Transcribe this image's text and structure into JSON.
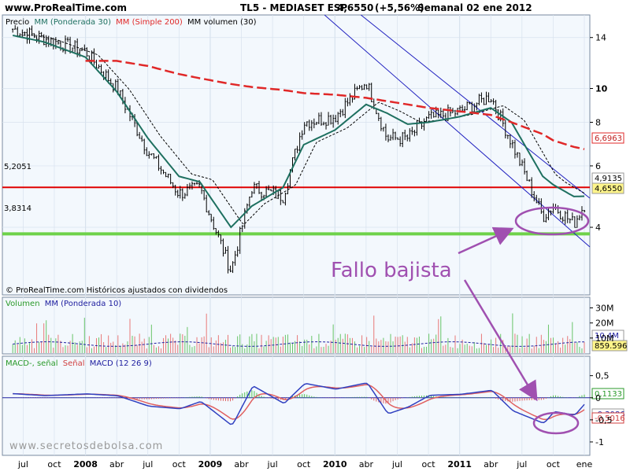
{
  "header": {
    "site": "www.ProRealTime.com",
    "instrument": "TL5 - MEDIASET ESP",
    "price": "4,6550",
    "change": "(+5,56%)",
    "period": "Semanal  02 ene 2012"
  },
  "colors": {
    "background": "#ffffff",
    "panel_bg": "#f3f8fd",
    "candles": "#000000",
    "mm30": "#1e7060",
    "mm200": "#e02828",
    "mm_volume": "#000000",
    "resistance": "#e00000",
    "support": "#6ed24a",
    "channel": "#2020c0",
    "annotation": "#a050b0",
    "vol_up": "#68c468",
    "vol_down": "#e87878",
    "macd_line": "#3040c0",
    "signal_line": "#e06060",
    "hist_up": "#50c050",
    "hist_down": "#e06060"
  },
  "price_panel": {
    "legend": {
      "precio": "Precio",
      "mm30": "MM (Ponderada 30)",
      "mm200": "MM (Simple 200)",
      "mmvol": "MM volumen (30)"
    },
    "footer": "© ProRealTime.com  Históricos ajustados con dividendos",
    "y_ticks": [
      "14",
      "10",
      "8",
      "6",
      "4"
    ],
    "y_tick_values": [
      14,
      10,
      8,
      6,
      4
    ],
    "resistance_label": "5,2051",
    "support_label": "3,8314",
    "value_tags": {
      "mm200": "6,6963",
      "mm30": "4,9135",
      "price": "4,6550"
    }
  },
  "volume_panel": {
    "legend": {
      "volumen": "Volumen",
      "mm": "MM (Ponderada 10)"
    },
    "y_ticks": [
      "30M",
      "20M",
      "10M"
    ],
    "value_tags": {
      "mm": "10,4M",
      "volume": "859.596"
    }
  },
  "macd_panel": {
    "legend": {
      "hist": "MACD-, señal",
      "signal": "Señal",
      "macd": "MACD (12 26 9)"
    },
    "y_ticks": [
      "0,5",
      "0",
      "-0,5",
      "-1"
    ],
    "value_tags": {
      "hist": "0,1133",
      "signal": "-0,3086",
      "macd": "-0,5016"
    },
    "watermark": "www.secretosdebolsa.com"
  },
  "x_axis": {
    "labels": [
      "jul",
      "oct",
      "2008",
      "abr",
      "jul",
      "oct",
      "2009",
      "abr",
      "jul",
      "oct",
      "2010",
      "abr",
      "jul",
      "oct",
      "2011",
      "abr",
      "jul",
      "oct",
      "ene"
    ]
  },
  "annotation": {
    "text": "Fallo bajista"
  },
  "chart_data": {
    "type": "line",
    "title": "TL5 - MEDIASET ESP",
    "x_range": [
      "2007-05",
      "2012-01"
    ],
    "y_scale": "log",
    "ylim": [
      2.6,
      16
    ],
    "x": [
      "2007-06",
      "2007-09",
      "2008-01",
      "2008-04",
      "2008-07",
      "2008-10",
      "2008-12",
      "2009-03",
      "2009-05",
      "2009-08",
      "2009-10",
      "2010-01",
      "2010-04",
      "2010-06",
      "2010-08",
      "2010-10",
      "2011-01",
      "2011-04",
      "2011-06",
      "2011-09",
      "2011-10",
      "2011-12",
      "2012-01"
    ],
    "series": [
      {
        "name": "Precio",
        "values": [
          14.8,
          13.9,
          12.8,
          10.0,
          6.6,
          5.0,
          5.2,
          3.0,
          5.2,
          4.9,
          8.0,
          8.3,
          10.5,
          7.2,
          7.2,
          8.2,
          8.6,
          9.5,
          7.0,
          4.3,
          4.6,
          4.1,
          4.65
        ]
      },
      {
        "name": "MM (Ponderada 30)",
        "values": [
          14.2,
          13.6,
          12.3,
          9.8,
          7.2,
          5.6,
          5.4,
          4.0,
          4.6,
          5.2,
          6.9,
          7.6,
          9.0,
          8.5,
          7.9,
          8.0,
          8.3,
          8.8,
          8.0,
          5.6,
          5.3,
          4.9,
          4.91
        ]
      },
      {
        "name": "MM (Simple 200)",
        "values": [
          null,
          null,
          null,
          12.0,
          11.6,
          11.0,
          10.7,
          10.3,
          10.1,
          9.9,
          9.7,
          9.6,
          9.4,
          9.2,
          9.0,
          8.8,
          8.6,
          8.4,
          8.0,
          7.4,
          7.1,
          6.8,
          6.7
        ]
      }
    ],
    "support_level": 3.8314,
    "resistance_level": 5.2051
  }
}
